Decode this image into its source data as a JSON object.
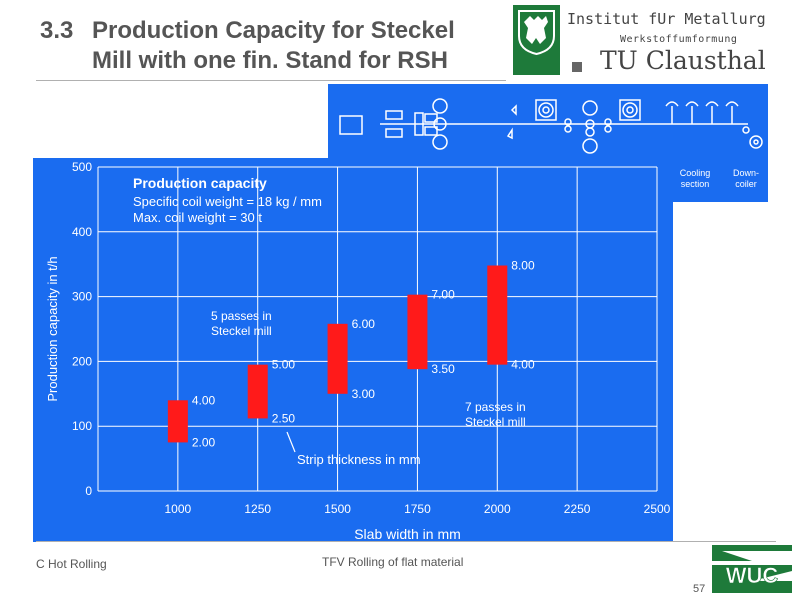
{
  "slide": {
    "number_label": "3.3",
    "title_line1": "Production Capacity for Steckel",
    "title_line2": "Mill with one fin. Stand for RSH",
    "institute_line1": "Institut fUr Metallurg",
    "institute_line2": "Werkstoffumformung",
    "institute_line3": "TU Clausthal",
    "footer_left": "C Hot Rolling",
    "footer_center": "TFV Rolling of flat material",
    "page_number": "57",
    "footer_logo_text": "WUC"
  },
  "plant_diagram": {
    "labels": {
      "cooling": "Cooling section",
      "cooling_l1": "Cooling",
      "cooling_l2": "section",
      "downcoiler_l1": "Down-",
      "downcoiler_l2": "coiler"
    }
  },
  "colors": {
    "background_blue": "#1a6cf0",
    "bar_red": "#ff1a1a",
    "logo_green": "#1e7a3a"
  },
  "chart_data": {
    "type": "bar",
    "title": "Production capacity",
    "subtitle_lines": [
      "Specific coil weight = 18 kg / mm",
      "Max. coil weight = 30 t"
    ],
    "xlabel": "Slab width in mm",
    "ylabel": "Production capacity in t/h",
    "x_ticks": [
      1000,
      1250,
      1500,
      1750,
      2000,
      2250,
      2500
    ],
    "y_ticks": [
      0,
      100,
      200,
      300,
      400,
      500
    ],
    "xlim": [
      750,
      2500
    ],
    "ylim": [
      0,
      500
    ],
    "grid": true,
    "series": [
      {
        "x": 1000,
        "low": 75,
        "high": 140,
        "low_label": "2.00",
        "high_label": "4.00"
      },
      {
        "x": 1250,
        "low": 112,
        "high": 195,
        "low_label": "2.50",
        "high_label": "5.00"
      },
      {
        "x": 1500,
        "low": 150,
        "high": 258,
        "low_label": "3.00",
        "high_label": "6.00"
      },
      {
        "x": 1750,
        "low": 188,
        "high": 303,
        "low_label": "3.50",
        "high_label": "7.00"
      },
      {
        "x": 2000,
        "low": 195,
        "high": 348,
        "low_label": "4.00",
        "high_label": "8.00"
      }
    ],
    "annotations": {
      "passes_5_l1": "5 passes in",
      "passes_5_l2": "Steckel mill",
      "passes_7_l1": "7 passes in",
      "passes_7_l2": "Steckel mill",
      "strip": "Strip thickness in mm"
    }
  }
}
